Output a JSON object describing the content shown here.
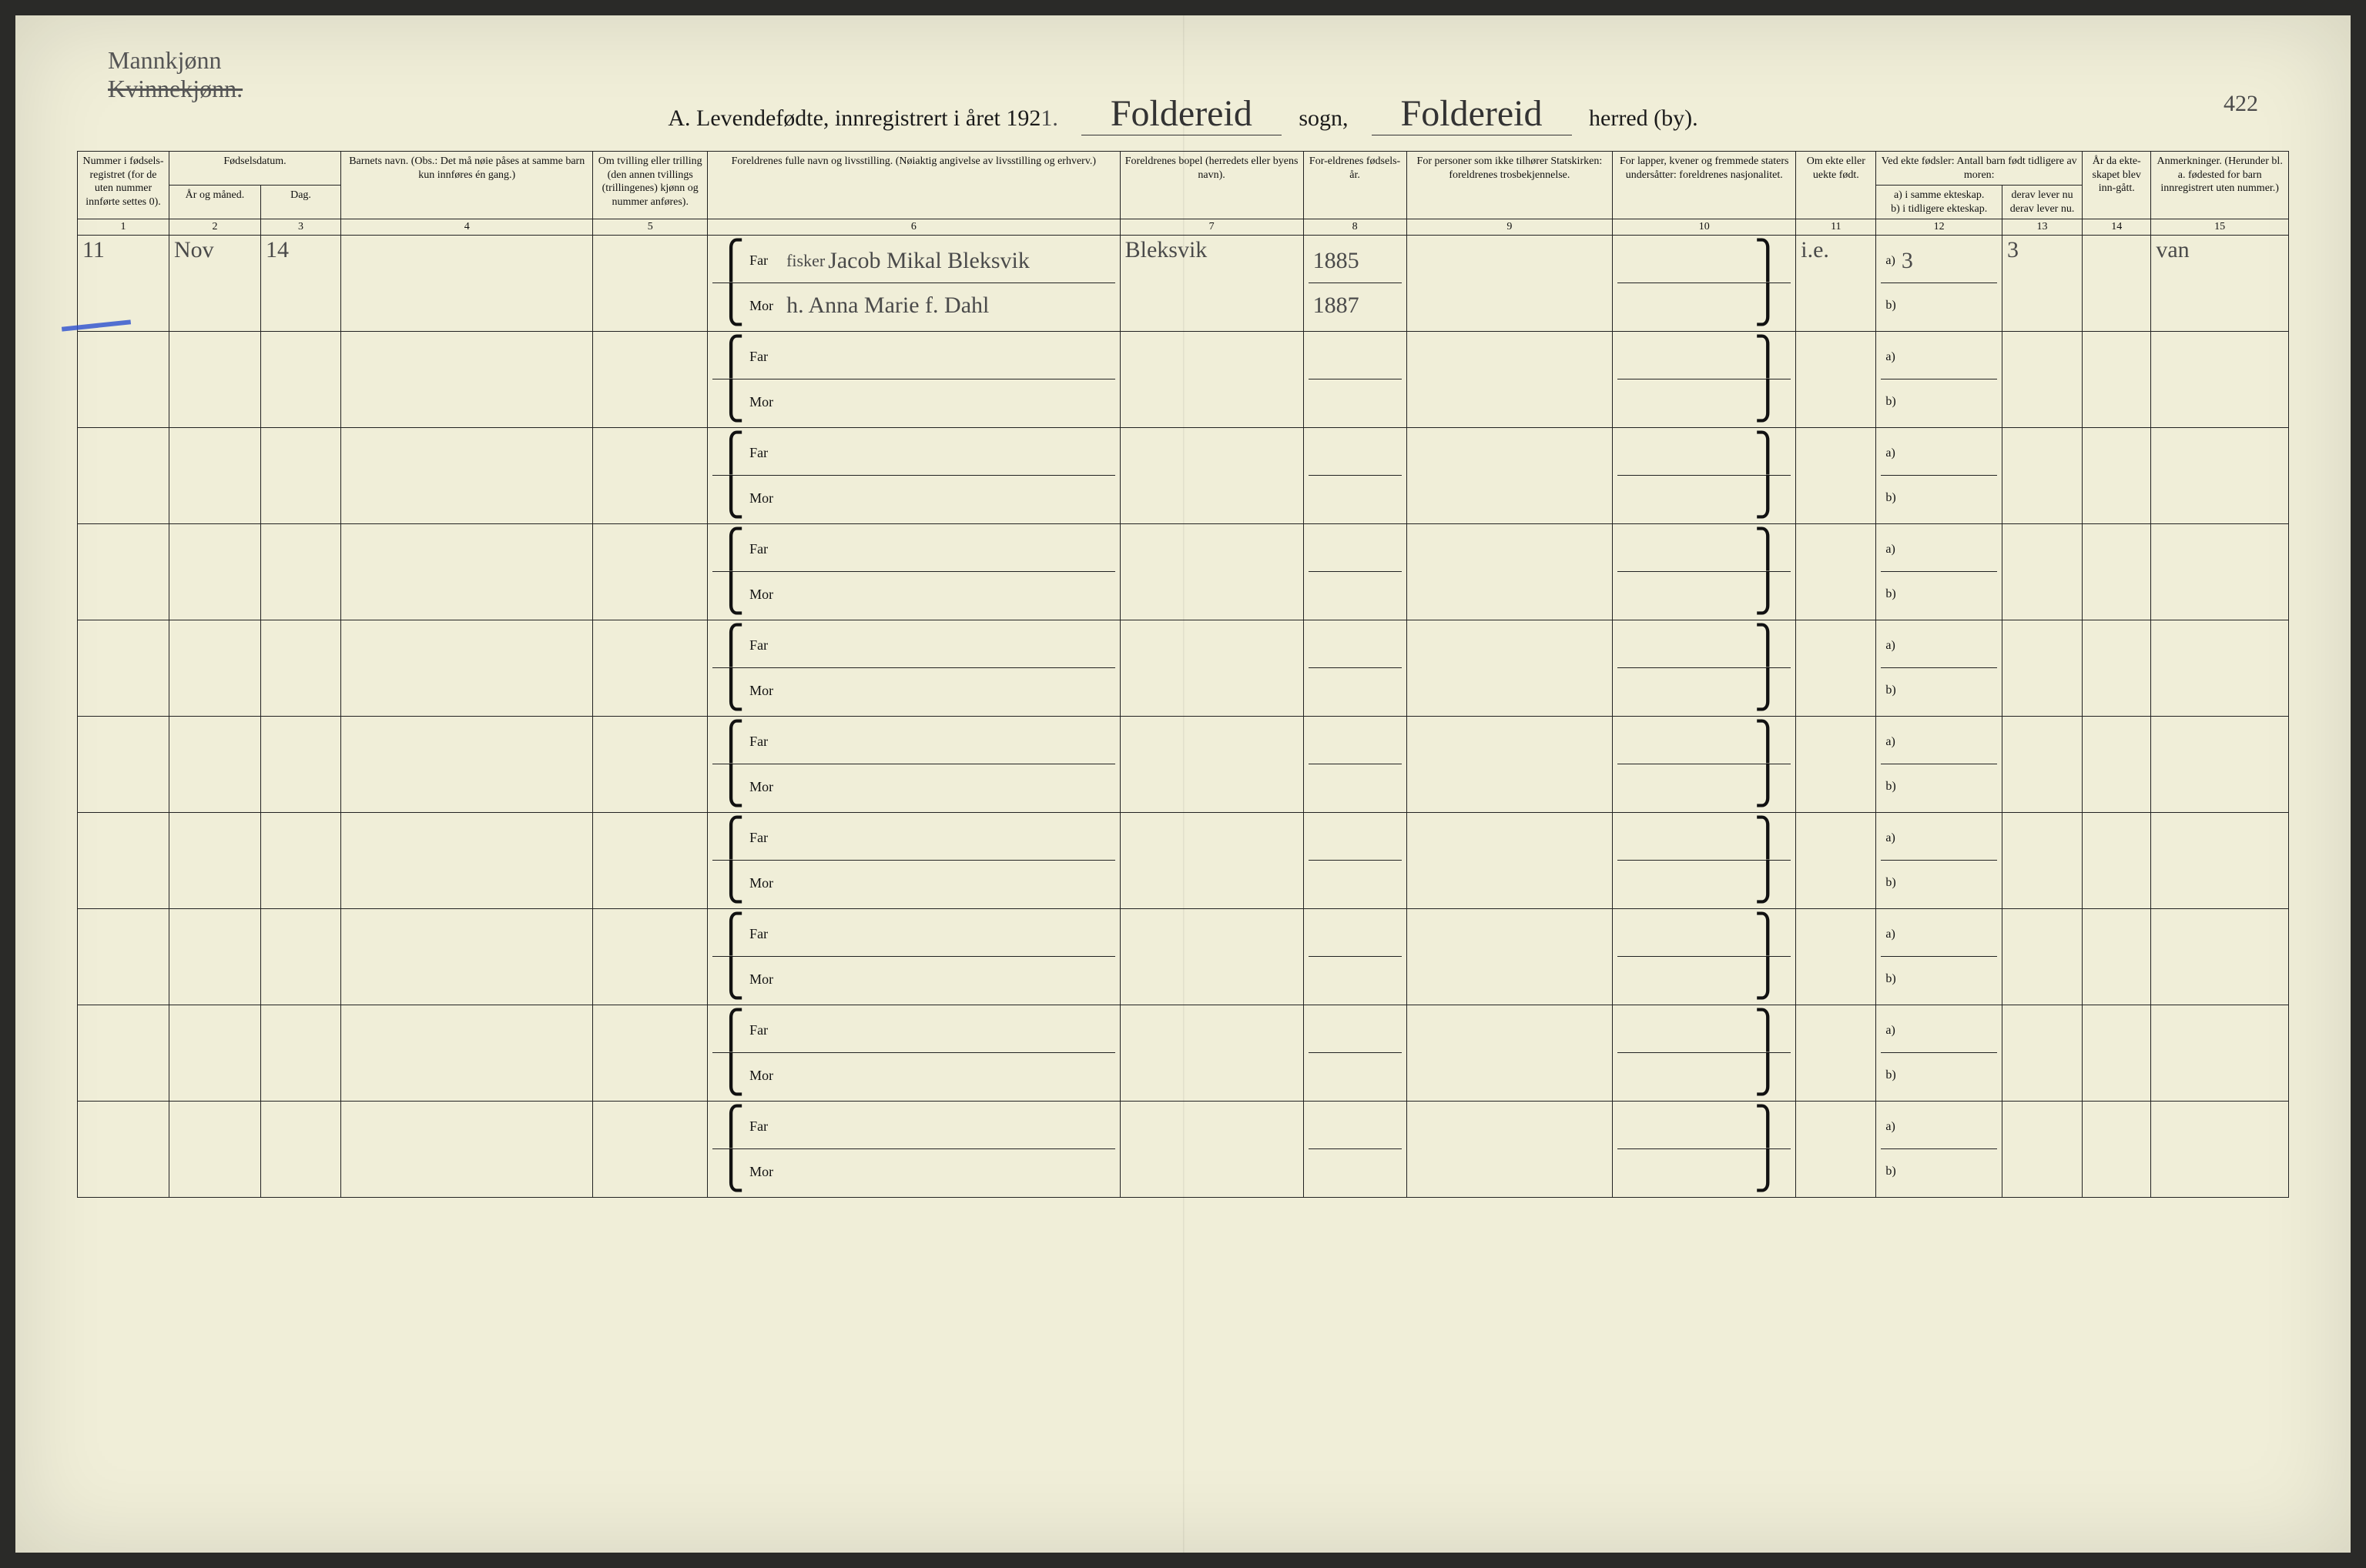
{
  "annotations": {
    "top_left_line1": "Mannkjønn",
    "top_left_line2_struck": "Kvinnekjønn.",
    "page_number_hand": "422"
  },
  "title": {
    "prefix": "A.  Levendefødte, innregistrert i året 192",
    "year_hand": "1.",
    "sogn_hand": "Foldereid",
    "sogn_label": "sogn,",
    "herred_hand": "Foldereid",
    "herred_label": "herred (by)."
  },
  "headers": {
    "c1": "Nummer i fødsels-registret (for de uten nummer innførte settes 0).",
    "c23_top": "Fødselsdatum.",
    "c2": "År og måned.",
    "c3": "Dag.",
    "c4": "Barnets navn.\n(Obs.: Det må nøie påses at samme barn kun innføres én gang.)",
    "c5": "Om tvilling eller trilling (den annen tvillings (trillingenes) kjønn og nummer anføres).",
    "c6": "Foreldrenes fulle navn og livsstilling.\n(Nøiaktig angivelse av livsstilling og erhverv.)",
    "c7": "Foreldrenes bopel (herredets eller byens navn).",
    "c8": "For-eldrenes fødsels-år.",
    "c9": "For personer som ikke tilhører Statskirken: foreldrenes trosbekjennelse.",
    "c10": "For lapper, kvener og fremmede staters undersåtter: foreldrenes nasjonalitet.",
    "c11": "Om ekte eller uekte født.",
    "c12_top": "Ved ekte fødsler: Antall barn født tidligere av moren:",
    "c12a": "a) i samme ekteskap.",
    "c12b": "b) i tidligere ekteskap.",
    "c13_top": "derav lever nu",
    "c13b": "derav lever nu.",
    "c14": "År da ekte-skapet blev inn-gått.",
    "c15": "Anmerkninger.\n(Herunder bl. a. fødested for barn innregistrert uten nummer.)"
  },
  "colnums": [
    "1",
    "2",
    "3",
    "4",
    "5",
    "6",
    "7",
    "8",
    "9",
    "10",
    "11",
    "12",
    "13",
    "14",
    "15"
  ],
  "far_label": "Far",
  "mor_label": "Mor",
  "ab_a": "a)",
  "ab_b": "b)",
  "row1": {
    "c1": "11",
    "c2": "Nov",
    "c3": "14",
    "c6_far_occ": "fisker",
    "c6_far": "Jacob Mikal Bleksvik",
    "c6_mor": "h. Anna Marie f. Dahl",
    "c7": "Bleksvik",
    "c8_far": "1885",
    "c8_mor": "1887",
    "c11": "i.e.",
    "c12a": "3",
    "c13": "3",
    "c15": "van"
  },
  "style": {
    "paper_bg": "#f0eed8",
    "ink": "#111111",
    "handwriting": "#4a4a4a",
    "blue_pencil": "#2a4fd0",
    "header_fontsize": 14,
    "body_fontsize": 16,
    "hand_fontsize": 30,
    "title_fontsize": 30,
    "script_fontsize": 48,
    "rows_total": 10,
    "filled_rows": 1
  }
}
